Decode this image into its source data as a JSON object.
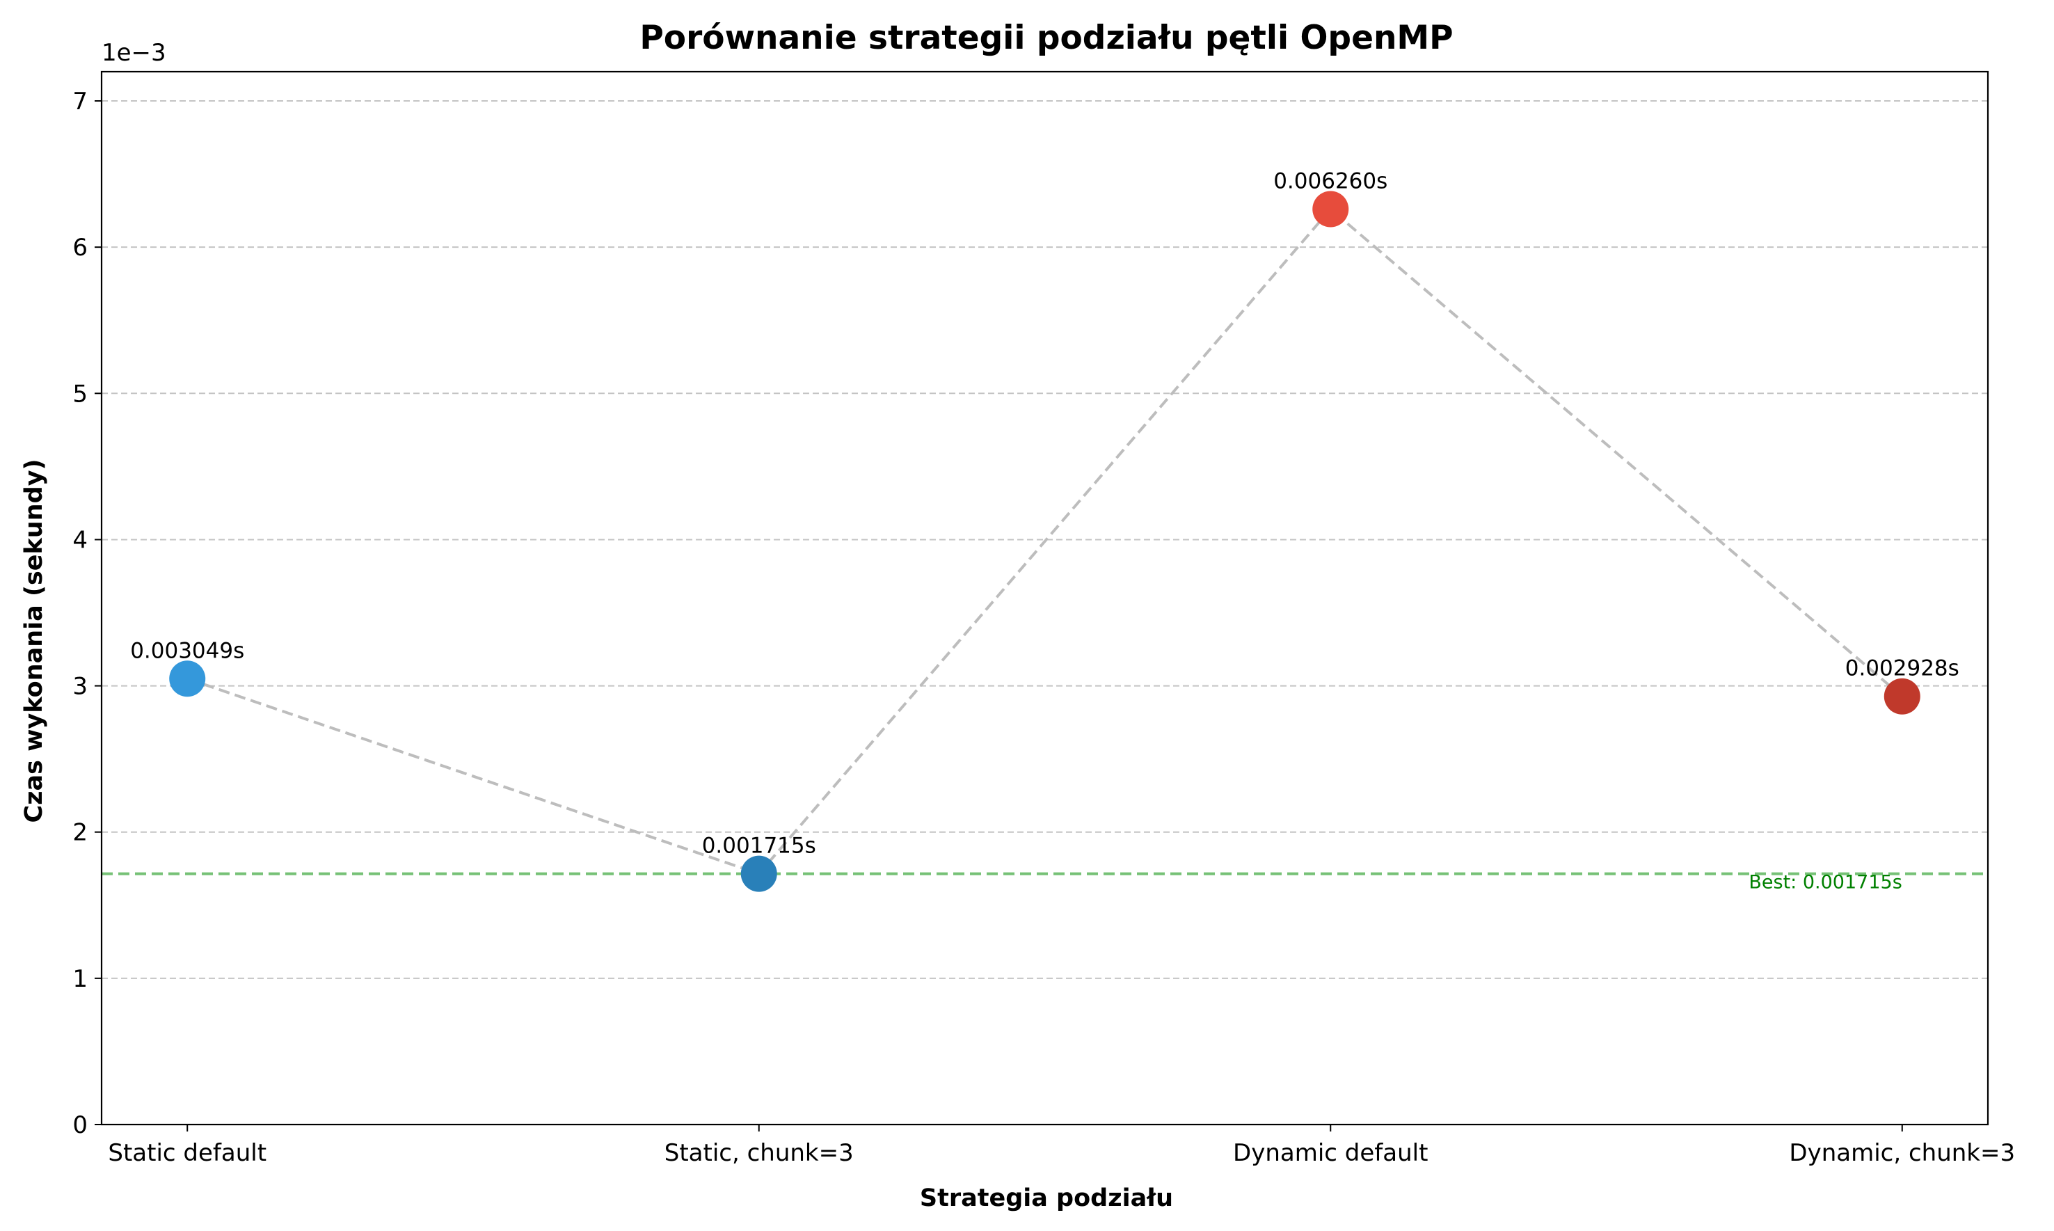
{
  "chart_data": {
    "type": "scatter",
    "title": "Porównanie strategii podziału pętli OpenMP",
    "xlabel": "Strategia podziału",
    "ylabel": "Czas wykonania (sekundy)",
    "y_offset_label": "1e−3",
    "categories": [
      "Static default",
      "Static, chunk=3",
      "Dynamic default",
      "Dynamic, chunk=3"
    ],
    "values": [
      0.003049,
      0.001715,
      0.00626,
      0.002928
    ],
    "data_labels": [
      "0.003049s",
      "0.001715s",
      "0.006260s",
      "0.002928s"
    ],
    "point_colors": [
      "#3498db",
      "#2980b9",
      "#e74c3c",
      "#c0392b"
    ],
    "connector_color": "#bdbdbd",
    "ylim": [
      0,
      0.0072
    ],
    "y_ticks": [
      0,
      0.001,
      0.002,
      0.003,
      0.004,
      0.005,
      0.006,
      0.007
    ],
    "y_tick_labels": [
      "0",
      "1",
      "2",
      "3",
      "4",
      "5",
      "6",
      "7"
    ],
    "grid": "horizontal dashed",
    "best_line": {
      "value": 0.001715,
      "label": "Best: 0.001715s",
      "color": "#2ca02c"
    }
  }
}
